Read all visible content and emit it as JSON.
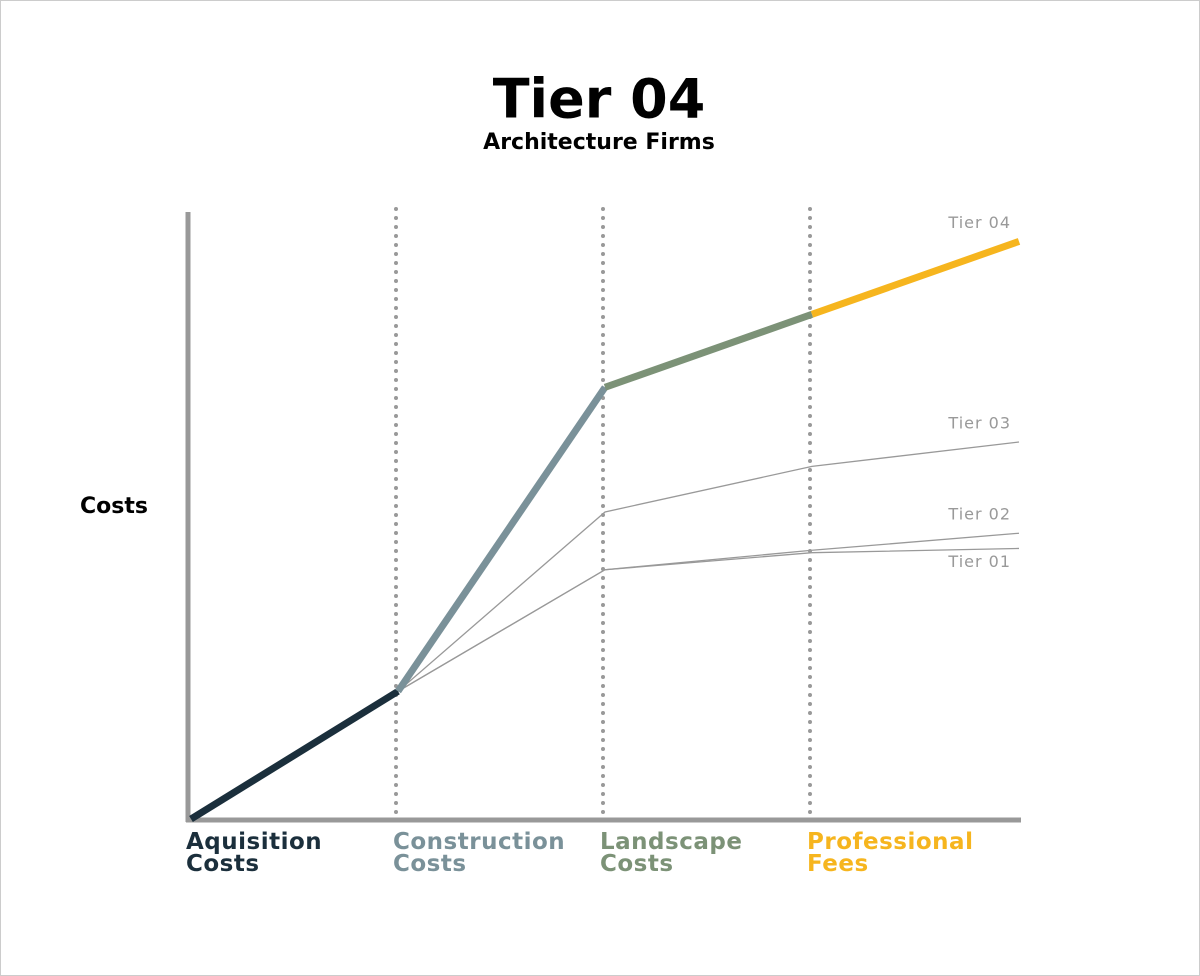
{
  "chart_data": {
    "type": "line",
    "title": "Tier 04",
    "subtitle": "Architecture Firms",
    "y_label": "Costs",
    "categories": [
      "Aquisition Costs",
      "Construction Costs",
      "Landscape Costs",
      "Professional Fees",
      null
    ],
    "category_colors": [
      "#1b2f3c",
      "#7a9199",
      "#7c9277",
      "#f6b51e"
    ],
    "ylim": [
      0,
      100
    ],
    "series": [
      {
        "name": "Tier 04",
        "color": "#999999",
        "highlight": true,
        "values": [
          0,
          21,
          71,
          83,
          95
        ]
      },
      {
        "name": "Tier 03",
        "color": "#999999",
        "values": [
          0,
          21,
          50.5,
          58,
          62
        ]
      },
      {
        "name": "Tier 02",
        "color": "#999999",
        "values": [
          0,
          21,
          41,
          44.2,
          47
        ]
      },
      {
        "name": "Tier 01",
        "color": "#999999",
        "values": [
          0,
          21,
          41,
          43.8,
          44.5
        ]
      }
    ]
  }
}
